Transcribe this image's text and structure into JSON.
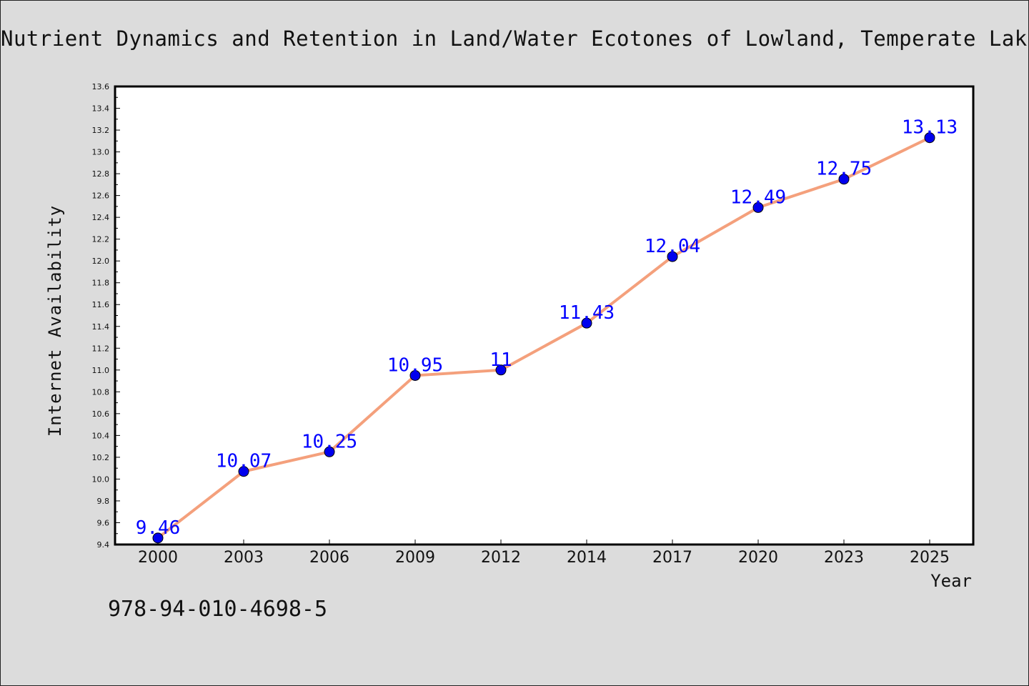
{
  "title": "Nutrient Dynamics and Retention in Land/Water Ecotones of Lowland, Temperate Lakes and Rivers",
  "footer_code": "978-94-010-4698-5",
  "chart_data": {
    "type": "line",
    "title": "Nutrient Dynamics and Retention in Land/Water Ecotones of Lowland, Temperate Lakes and Rivers",
    "xlabel": "Year",
    "ylabel": "Internet Availability",
    "categories": [
      "2000",
      "2003",
      "2006",
      "2009",
      "2012",
      "2014",
      "2017",
      "2020",
      "2023",
      "2025"
    ],
    "values": [
      9.46,
      10.07,
      10.25,
      10.95,
      11,
      11.43,
      12.04,
      12.49,
      12.75,
      13.13
    ],
    "data_labels": [
      "9.46",
      "10.07",
      "10.25",
      "10.95",
      "11",
      "11.43",
      "12.04",
      "12.49",
      "12.75",
      "13.13"
    ],
    "ylim": [
      9.4,
      13.6
    ],
    "yticks": [
      "9.4",
      "9.6",
      "9.8",
      "10.0",
      "10.2",
      "10.4",
      "10.6",
      "10.8",
      "11.0",
      "11.2",
      "11.4",
      "11.6",
      "11.8",
      "12.0",
      "12.2",
      "12.4",
      "12.6",
      "12.8",
      "13.0",
      "13.2",
      "13.4",
      "13.6"
    ],
    "grid": false,
    "colors": {
      "line": "#f4a07c",
      "marker": "#0000ee",
      "label": "#0000ff",
      "background": "#dcdcdc",
      "plot_area": "#ffffff"
    }
  }
}
